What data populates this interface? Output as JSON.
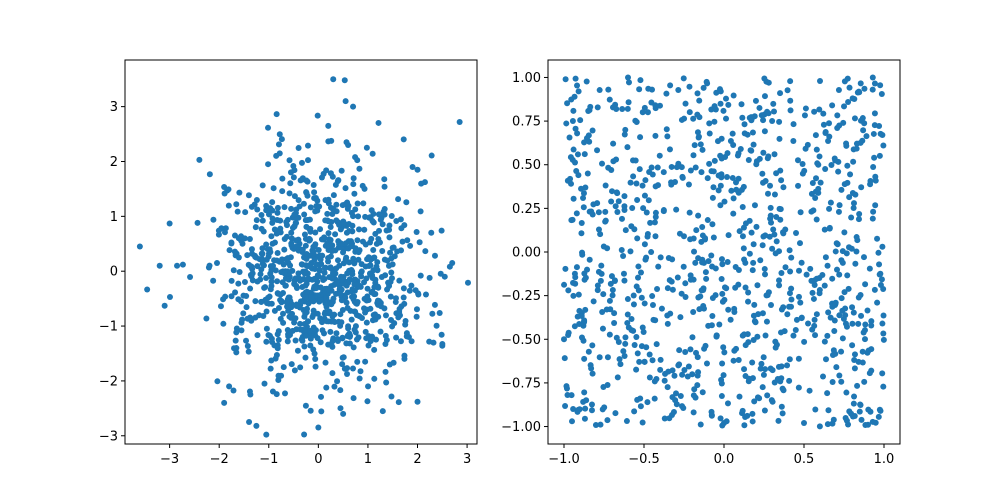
{
  "chart_data": [
    {
      "type": "scatter",
      "title": "",
      "xlabel": "",
      "ylabel": "",
      "xlim": [
        -3.9,
        3.2
      ],
      "ylim": [
        -3.15,
        3.85
      ],
      "xticks": [
        -3,
        -2,
        -1,
        0,
        1,
        2,
        3
      ],
      "yticks": [
        -3,
        -2,
        -1,
        0,
        1,
        2,
        3
      ],
      "xtick_labels": [
        "−3",
        "−2",
        "−1",
        "0",
        "1",
        "2",
        "3"
      ],
      "ytick_labels": [
        "−3",
        "−2",
        "−1",
        "0",
        "1",
        "2",
        "3"
      ],
      "grid": false,
      "series": [
        {
          "color": "#1f77b4",
          "distribution": "normal",
          "count": 1000,
          "points": [
            [
              -3.6,
              0.45
            ],
            [
              -3.2,
              0.1
            ],
            [
              -3.1,
              -0.63
            ],
            [
              -3.0,
              0.87
            ],
            [
              -2.85,
              0.1
            ],
            [
              0.3,
              3.5
            ],
            [
              2.85,
              2.72
            ],
            [
              -2.4,
              2.03
            ],
            [
              0.55,
              3.1
            ],
            [
              0.7,
              3.0
            ],
            [
              -1.25,
              -2.82
            ],
            [
              -1.05,
              -2.98
            ],
            [
              0.0,
              -2.85
            ],
            [
              0.5,
              -2.6
            ],
            [
              1.3,
              -2.55
            ],
            [
              2.0,
              -2.38
            ],
            [
              2.5,
              -1.36
            ],
            [
              2.7,
              0.15
            ],
            [
              2.55,
              -0.1
            ],
            [
              1.9,
              1.9
            ],
            [
              2.0,
              1.85
            ],
            [
              -1.9,
              -2.4
            ],
            [
              -1.8,
              -2.1
            ],
            [
              0.6,
              2.3
            ],
            [
              0.2,
              2.65
            ]
          ]
        }
      ]
    },
    {
      "type": "scatter",
      "title": "",
      "xlabel": "",
      "ylabel": "",
      "xlim": [
        -1.1,
        1.1
      ],
      "ylim": [
        -1.1,
        1.1
      ],
      "xticks": [
        -1.0,
        -0.5,
        0.0,
        0.5,
        1.0
      ],
      "yticks": [
        -1.0,
        -0.75,
        -0.5,
        -0.25,
        0.0,
        0.25,
        0.5,
        0.75,
        1.0
      ],
      "xtick_labels": [
        "−1.0",
        "−0.5",
        "0.0",
        "0.5",
        "1.0"
      ],
      "ytick_labels": [
        "−1.00",
        "−0.75",
        "−0.50",
        "−0.25",
        "0.00",
        "0.25",
        "0.50",
        "0.75",
        "1.00"
      ],
      "grid": false,
      "series": [
        {
          "color": "#1f77b4",
          "distribution": "uniform",
          "count": 1000,
          "points": [
            [
              -0.99,
              0.99
            ],
            [
              -0.6,
              1.0
            ],
            [
              0.93,
              1.0
            ],
            [
              0.99,
              0.67
            ],
            [
              0.99,
              0.03
            ],
            [
              0.99,
              -0.41
            ],
            [
              -1.0,
              -0.5
            ],
            [
              -0.95,
              -0.97
            ],
            [
              0.0,
              -0.98
            ],
            [
              0.5,
              -0.98
            ],
            [
              0.9,
              -0.99
            ],
            [
              -0.02,
              0.92
            ],
            [
              0.28,
              0.97
            ],
            [
              -0.45,
              0.93
            ],
            [
              0.6,
              0.98
            ]
          ]
        }
      ]
    }
  ]
}
